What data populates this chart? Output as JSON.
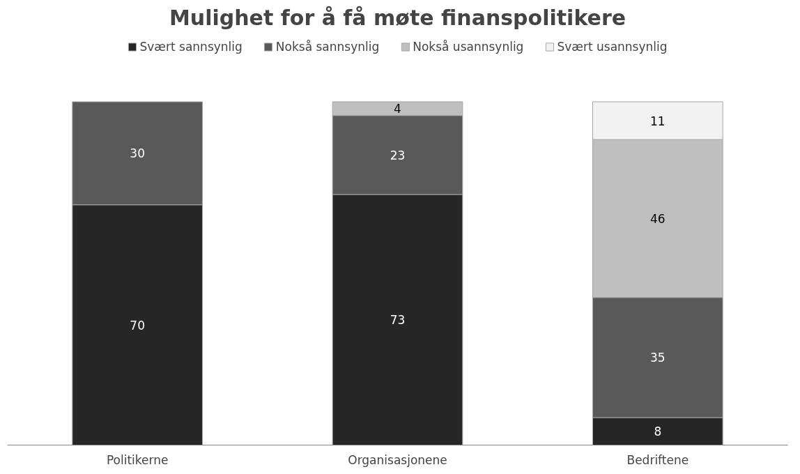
{
  "chart_data": {
    "type": "bar",
    "title": "Mulighet for å få møte finanspolitikere",
    "categories": [
      "Politikerne",
      "Organisasjonene",
      "Bedriftene"
    ],
    "stacked": true,
    "data_labels": true,
    "legend": "top",
    "grid": false,
    "series": [
      {
        "name": "Svært sannsynlig",
        "color": "#262626",
        "values": [
          70,
          73,
          8
        ]
      },
      {
        "name": "Nokså sannsynlig",
        "color": "#595959",
        "values": [
          30,
          23,
          35
        ]
      },
      {
        "name": "Nokså usannsynlig",
        "color": "#bfbfbf",
        "values": [
          null,
          4,
          46
        ]
      },
      {
        "name": "Svært usannsynlig",
        "color": "#f2f2f2",
        "values": [
          null,
          null,
          11
        ]
      }
    ]
  }
}
